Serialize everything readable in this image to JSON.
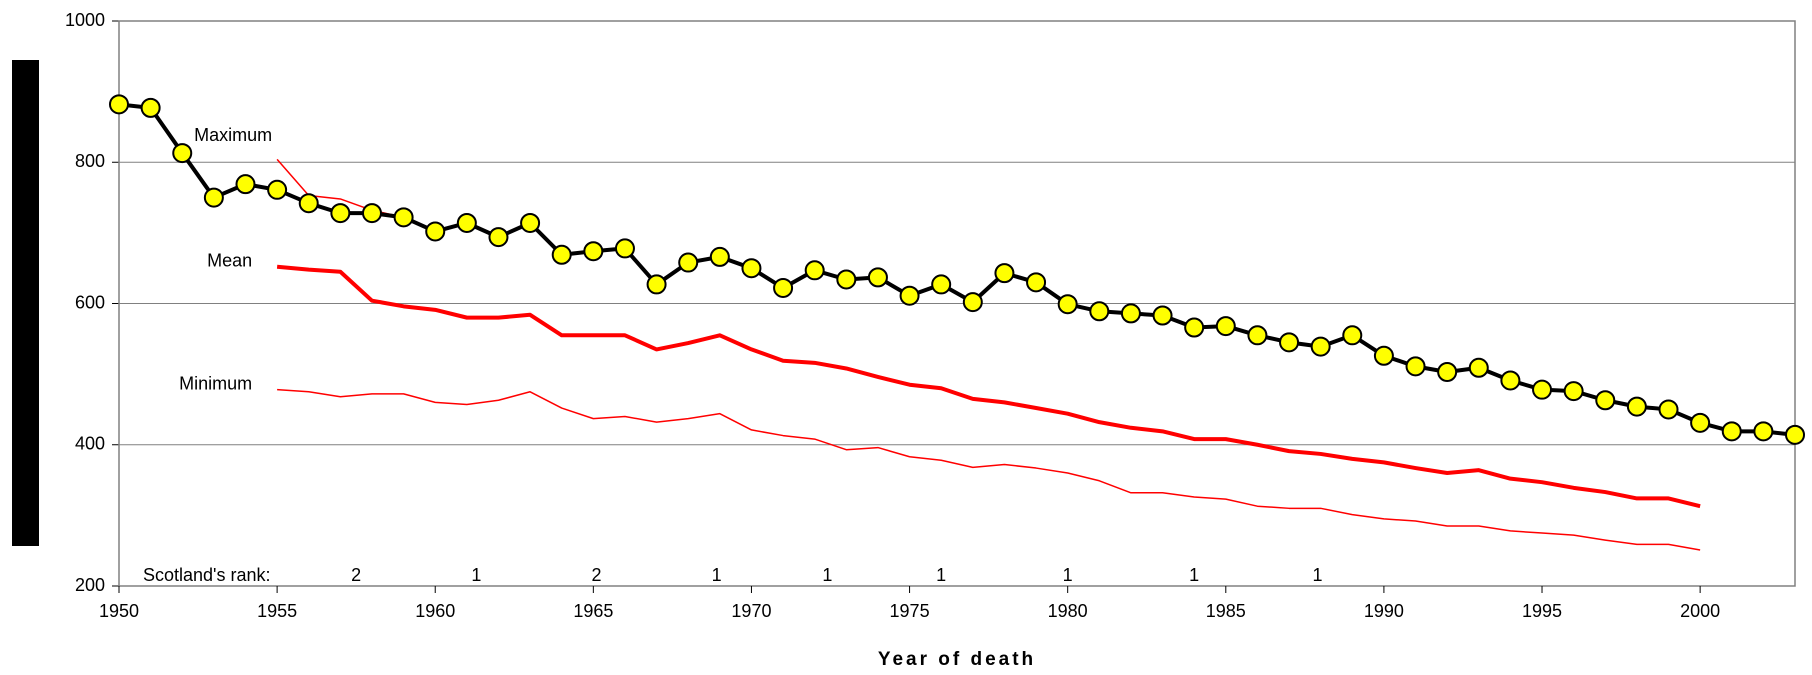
{
  "chart_data": {
    "type": "line",
    "xlabel": "Year of death",
    "x": [
      1950,
      1951,
      1952,
      1953,
      1954,
      1955,
      1956,
      1957,
      1958,
      1959,
      1960,
      1961,
      1962,
      1963,
      1964,
      1965,
      1966,
      1967,
      1968,
      1969,
      1970,
      1971,
      1972,
      1973,
      1974,
      1975,
      1976,
      1977,
      1978,
      1979,
      1980,
      1981,
      1982,
      1983,
      1984,
      1985,
      1986,
      1987,
      1988,
      1989,
      1990,
      1991,
      1992,
      1993,
      1994,
      1995,
      1996,
      1997,
      1998,
      1999,
      2000,
      2001,
      2002,
      2003
    ],
    "xlim": [
      1950,
      2003
    ],
    "xticks": [
      1950,
      1955,
      1960,
      1965,
      1970,
      1975,
      1980,
      1985,
      1990,
      1995,
      2000
    ],
    "ylim": [
      200,
      1000
    ],
    "yticks": [
      200,
      400,
      600,
      800,
      1000
    ],
    "grid": true,
    "series": [
      {
        "name": "Minimum",
        "color": "#ff0000",
        "width": 1.5,
        "markers": false,
        "values": [
          null,
          null,
          null,
          null,
          null,
          478,
          475,
          468,
          472,
          472,
          460,
          457,
          463,
          475,
          452,
          437,
          440,
          432,
          437,
          444,
          421,
          413,
          408,
          393,
          396,
          383,
          378,
          368,
          372,
          367,
          360,
          349,
          332,
          332,
          326,
          323,
          313,
          310,
          310,
          301,
          295,
          292,
          285,
          285,
          278,
          275,
          272,
          265,
          259,
          259,
          251,
          null,
          null,
          null
        ]
      },
      {
        "name": "Mean",
        "color": "#ff0000",
        "width": 4,
        "markers": false,
        "values": [
          null,
          null,
          null,
          null,
          null,
          652,
          648,
          645,
          604,
          596,
          591,
          580,
          580,
          584,
          555,
          555,
          555,
          535,
          544,
          555,
          535,
          519,
          516,
          508,
          496,
          485,
          480,
          465,
          460,
          452,
          444,
          432,
          424,
          419,
          408,
          408,
          400,
          391,
          387,
          380,
          375,
          367,
          360,
          364,
          352,
          347,
          339,
          333,
          324,
          324,
          313,
          null,
          null,
          null
        ]
      },
      {
        "name": "Maximum",
        "color": "#ff0000",
        "width": 1.5,
        "markers": false,
        "values": [
          null,
          null,
          null,
          null,
          null,
          804,
          753,
          748,
          732,
          722,
          702,
          714,
          694,
          714,
          669,
          674,
          678,
          627,
          658,
          666,
          650,
          622,
          647,
          634,
          637,
          611,
          627,
          602,
          643,
          630,
          599,
          589,
          586,
          583,
          566,
          568,
          555,
          545,
          539,
          555,
          526,
          511,
          503,
          509,
          491,
          478,
          476,
          463,
          454,
          450,
          431,
          null,
          null,
          null
        ]
      },
      {
        "name": "Scotland",
        "color": "#000000",
        "marker_color": "#ffff00",
        "width": 4,
        "markers": true,
        "values": [
          882,
          877,
          813,
          750,
          769,
          761,
          742,
          728,
          728,
          722,
          702,
          714,
          694,
          714,
          669,
          674,
          678,
          627,
          658,
          666,
          650,
          622,
          647,
          634,
          637,
          611,
          627,
          602,
          643,
          630,
          599,
          589,
          586,
          583,
          566,
          568,
          555,
          545,
          539,
          555,
          526,
          511,
          503,
          509,
          491,
          478,
          476,
          463,
          454,
          450,
          431,
          419,
          419,
          414
        ]
      }
    ],
    "rank": {
      "label": "Scotland's rank:",
      "x": [
        1957.5,
        1961.3,
        1965.1,
        1968.9,
        1972.4,
        1976,
        1980,
        1984,
        1987.9
      ],
      "values": [
        2,
        1,
        2,
        1,
        1,
        1,
        1,
        1,
        1
      ]
    }
  }
}
